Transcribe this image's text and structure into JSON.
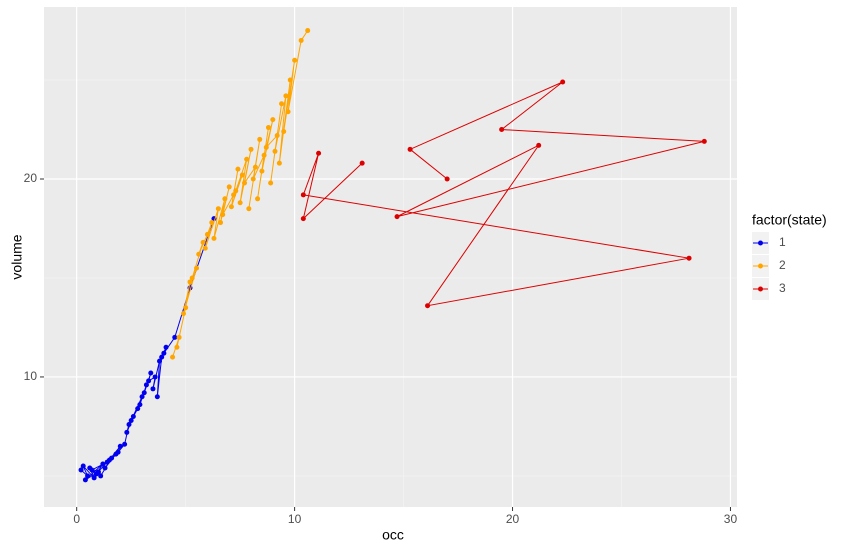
{
  "chart_data": {
    "type": "line",
    "xlabel": "occ",
    "ylabel": "volume",
    "legend_title": "factor(state)",
    "xlim": [
      -1.5,
      30.3
    ],
    "ylim": [
      3.43,
      28.69
    ],
    "xticks": [
      0,
      10,
      20,
      30
    ],
    "yticks": [
      10,
      20
    ],
    "xminor": [
      5,
      15,
      25
    ],
    "yminor": [
      5,
      15,
      25
    ],
    "grid": true,
    "legend": "right",
    "series": [
      {
        "name": "1",
        "color": "#0000ee",
        "x": [
          0.2,
          0.5,
          0.3,
          0.8,
          0.6,
          1.0,
          0.4,
          1.2,
          0.9,
          1.4,
          0.7,
          1.1,
          1.6,
          1.3,
          1.8,
          1.5,
          2.0,
          1.9,
          2.2,
          2.4,
          2.3,
          2.6,
          2.8,
          2.5,
          3.0,
          2.9,
          3.2,
          3.1,
          3.4,
          3.3,
          3.6,
          3.5,
          3.8,
          3.7,
          3.9,
          4.1,
          4.0,
          4.5,
          5.2,
          6.3
        ],
        "values": [
          5.3,
          5.0,
          5.5,
          4.9,
          5.4,
          5.2,
          4.8,
          5.6,
          5.1,
          5.7,
          5.3,
          5.0,
          5.9,
          5.4,
          6.1,
          5.8,
          6.5,
          6.2,
          6.6,
          7.6,
          7.2,
          8.0,
          8.4,
          7.8,
          9.0,
          8.6,
          9.6,
          9.2,
          10.2,
          9.8,
          10.0,
          9.4,
          10.8,
          9.0,
          11.0,
          11.5,
          11.2,
          12.0,
          14.5,
          18.0
        ]
      },
      {
        "name": "2",
        "color": "#ffa500",
        "x": [
          4.4,
          4.7,
          4.6,
          5.0,
          5.2,
          4.9,
          5.5,
          5.3,
          5.8,
          5.6,
          6.0,
          6.2,
          5.9,
          6.5,
          6.3,
          6.8,
          6.6,
          7.0,
          6.7,
          7.2,
          7.4,
          7.1,
          7.6,
          7.3,
          7.8,
          7.5,
          8.0,
          7.7,
          8.2,
          7.9,
          8.4,
          8.1,
          8.6,
          8.3,
          8.8,
          8.5,
          9.0,
          8.7,
          9.2,
          8.9,
          9.4,
          9.1,
          9.6,
          9.3,
          9.8,
          9.5,
          10.0,
          9.7,
          10.3,
          10.6
        ],
        "values": [
          11.0,
          12.0,
          11.5,
          13.5,
          14.8,
          13.2,
          15.5,
          15.0,
          16.8,
          16.2,
          17.2,
          17.8,
          16.5,
          18.5,
          17.0,
          19.0,
          17.8,
          19.6,
          18.2,
          19.2,
          20.5,
          18.6,
          20.2,
          19.4,
          21.0,
          18.8,
          21.5,
          19.8,
          20.6,
          18.5,
          22.0,
          20.0,
          21.2,
          19.0,
          22.6,
          20.4,
          23.0,
          21.6,
          22.2,
          19.8,
          23.8,
          21.4,
          24.2,
          20.8,
          25.0,
          22.4,
          26.0,
          23.4,
          27.0,
          27.5
        ]
      },
      {
        "name": "3",
        "color": "#dd0000",
        "x": [
          17.0,
          15.3,
          22.3,
          19.5,
          28.8,
          14.7,
          21.2,
          16.1,
          28.1,
          10.4,
          11.1,
          10.4,
          13.1
        ],
        "values": [
          20.0,
          21.5,
          24.9,
          22.5,
          21.9,
          18.1,
          21.7,
          13.6,
          16.0,
          19.2,
          21.3,
          18.0,
          20.8
        ]
      }
    ]
  }
}
